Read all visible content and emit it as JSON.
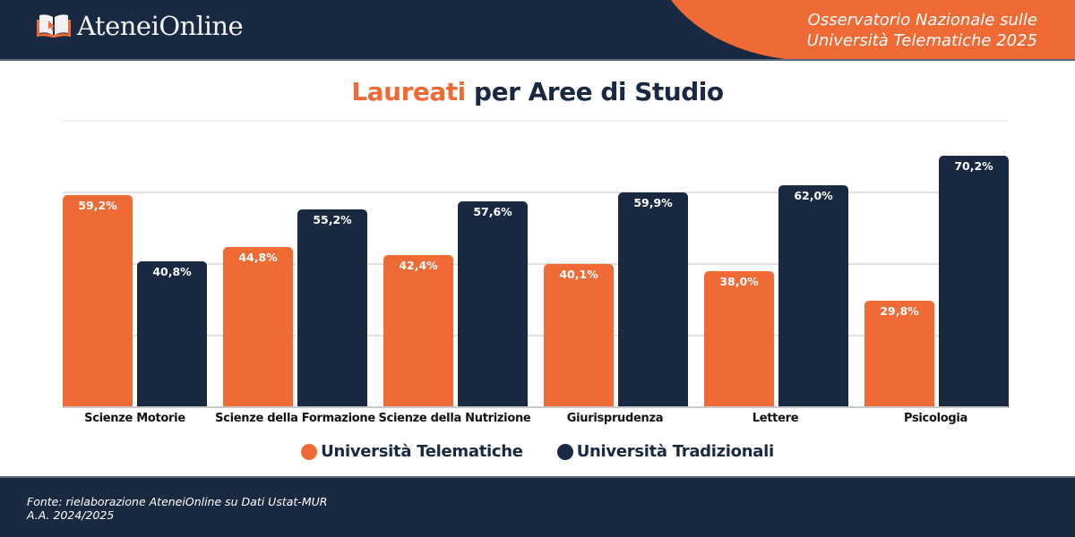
{
  "header": {
    "brand": "AteneiOnline",
    "subtitle_line1": "Osservatorio Nazionale sulle",
    "subtitle_line2": "Università Telematiche 2025"
  },
  "title": {
    "accent": "Laureati",
    "rest": " per Aree di Studio"
  },
  "legend": [
    {
      "label": "Università Telematiche",
      "color": "#f06a36"
    },
    {
      "label": "Università Tradizionali",
      "color": "#1a2942"
    }
  ],
  "footer": {
    "line1": "Fonte: rielaborazione AteneiOnline su Dati Ustat-MUR",
    "line2": "A.A. 2024/2025"
  },
  "colors": {
    "accent": "#f06a36",
    "navy": "#1a2942",
    "grid": "#e0e0e0"
  },
  "chart_data": {
    "type": "bar",
    "title": "Laureati per Aree di Studio",
    "xlabel": "",
    "ylabel": "",
    "ylim": [
      0,
      80
    ],
    "grid": true,
    "gridlines": [
      20,
      40,
      60
    ],
    "legend_position": "bottom",
    "categories": [
      "Scienze Motorie",
      "Scienze della Formazione",
      "Scienze della Nutrizione",
      "Giurisprudenza",
      "Lettere",
      "Psicologia"
    ],
    "series": [
      {
        "name": "Università Telematiche",
        "color": "#f06a36",
        "values": [
          59.2,
          44.8,
          42.4,
          40.1,
          38.0,
          29.8
        ],
        "labels": [
          "59,2%",
          "44,8%",
          "42,4%",
          "40,1%",
          "38,0%",
          "29,8%"
        ]
      },
      {
        "name": "Università Tradizionali",
        "color": "#1a2942",
        "values": [
          40.8,
          55.2,
          57.6,
          59.9,
          62.0,
          70.2
        ],
        "labels": [
          "40,8%",
          "55,2%",
          "57,6%",
          "59,9%",
          "62,0%",
          "70,2%"
        ]
      }
    ]
  }
}
